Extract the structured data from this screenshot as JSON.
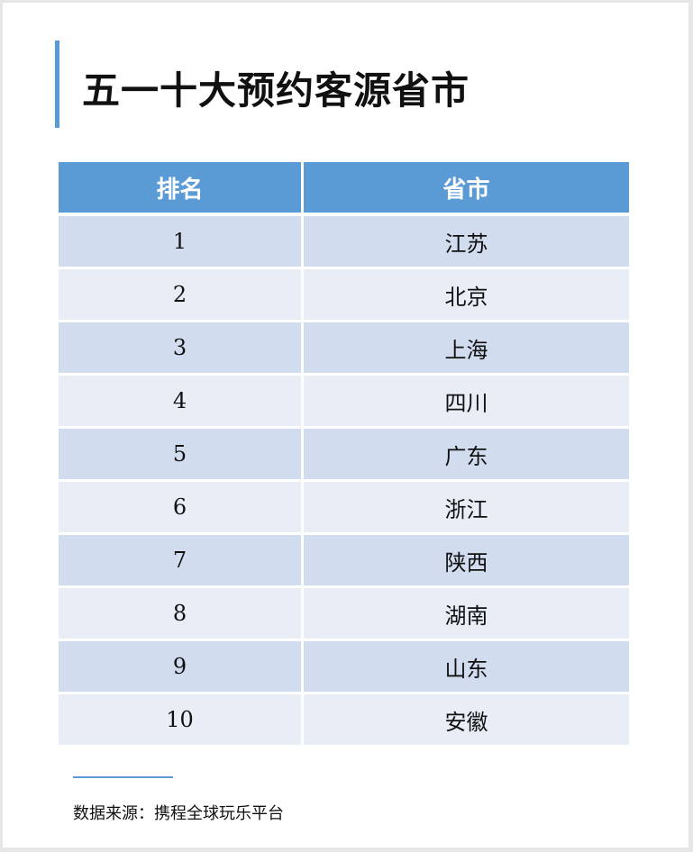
{
  "title": "五一十大预约客源省市",
  "accent_color": "#5b9bd5",
  "chart_data": {
    "type": "table",
    "columns": [
      "排名",
      "省市"
    ],
    "rows": [
      [
        "1",
        "江苏"
      ],
      [
        "2",
        "北京"
      ],
      [
        "3",
        "上海"
      ],
      [
        "4",
        "四川"
      ],
      [
        "5",
        "广东"
      ],
      [
        "6",
        "浙江"
      ],
      [
        "7",
        "陕西"
      ],
      [
        "8",
        "湖南"
      ],
      [
        "9",
        "山东"
      ],
      [
        "10",
        "安徽"
      ]
    ]
  },
  "source": "数据来源：携程全球玩乐平台"
}
